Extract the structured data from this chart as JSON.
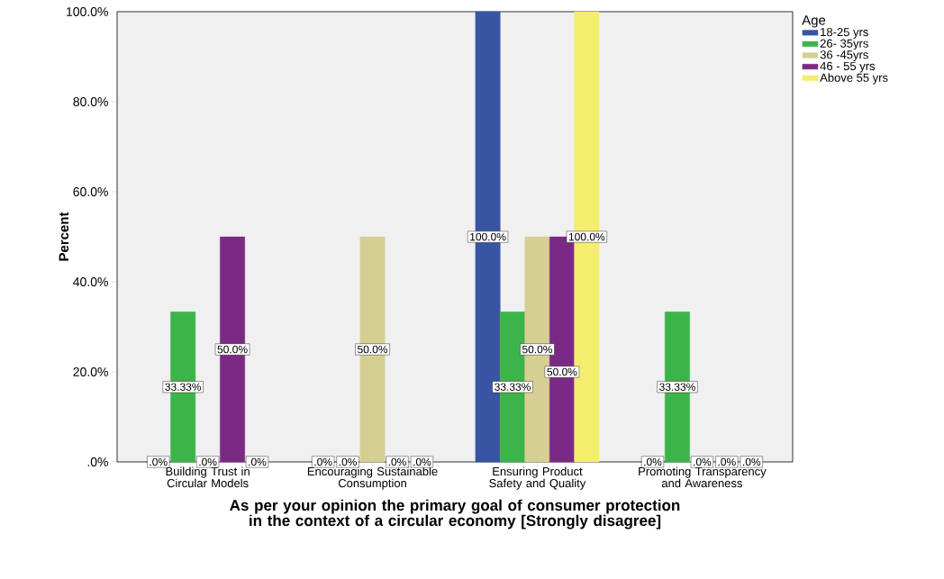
{
  "chart_data": {
    "type": "bar",
    "xlabel": "As per your opinion the primary goal of consumer protection in the context of a circular economy [Strongly disagree]",
    "ylabel": "Percent",
    "legend_title": "Age",
    "categories": [
      "Building Trust in Circular Models",
      "Encouraging Sustainable Consumption",
      "Ensuring Product Safety and Quality",
      "Promoting Transparency and Awareness"
    ],
    "series": [
      {
        "name": "18-25 yrs",
        "color": "#3a54a4",
        "values": [
          0,
          0,
          100,
          0
        ],
        "value_labels": [
          ".0%",
          ".0%",
          "100.0%",
          ".0%"
        ]
      },
      {
        "name": "26- 35yrs",
        "color": "#3cb44a",
        "values": [
          33.33,
          0,
          33.33,
          33.33
        ],
        "value_labels": [
          "33.33%",
          ".0%",
          "33.33%",
          "33.33%"
        ]
      },
      {
        "name": "36 -45yrs",
        "color": "#d6cf94",
        "values": [
          0,
          50,
          50,
          0
        ],
        "value_labels": [
          ".0%",
          "50.0%",
          "50.0%",
          ".0%"
        ]
      },
      {
        "name": "46 - 55 yrs",
        "color": "#7b2a84",
        "values": [
          50,
          0,
          50,
          0
        ],
        "value_labels": [
          "50.0%",
          ".0%",
          "50.0%",
          ".0%"
        ]
      },
      {
        "name": "Above 55 yrs",
        "color": "#f5ed6e",
        "values": [
          0,
          0,
          100,
          0
        ],
        "value_labels": [
          ".0%",
          ".0%",
          "100.0%",
          ".0%"
        ]
      }
    ],
    "ylim": [
      0,
      100
    ],
    "yticks": [
      {
        "value": 0,
        "label": ".0%"
      },
      {
        "value": 20,
        "label": "20.0%"
      },
      {
        "value": 40,
        "label": "40.0%"
      },
      {
        "value": 60,
        "label": "60.0%"
      },
      {
        "value": 80,
        "label": "80.0%"
      },
      {
        "value": 100,
        "label": "100.0%"
      }
    ],
    "grid": false,
    "legend": "top right"
  }
}
